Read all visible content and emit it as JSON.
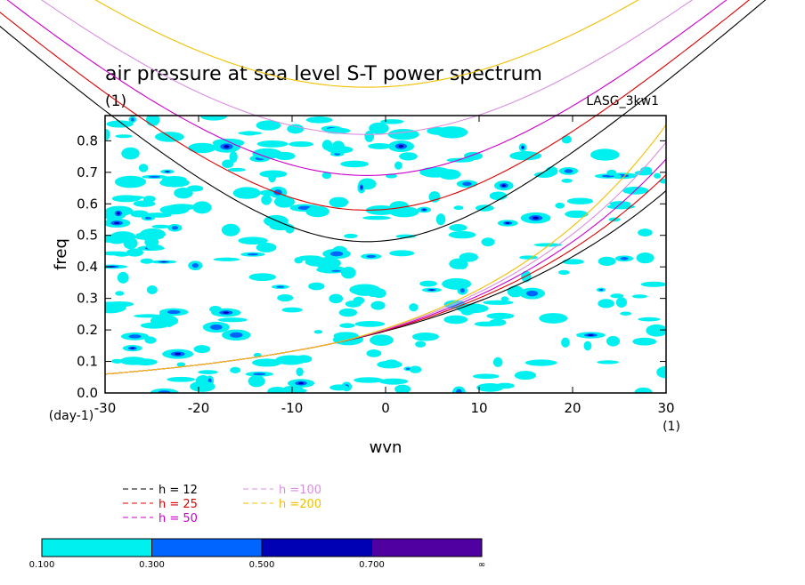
{
  "chart_data": {
    "type": "line",
    "title": "air pressure at sea level S-T power spectrum",
    "subtitle_left": "(1)",
    "subtitle_right": "LASG_3kw1",
    "xlabel": "wvn",
    "ylabel": "freq",
    "x_unit": "(1)",
    "y_unit": "(day-1)",
    "xlim": [
      -30,
      30
    ],
    "ylim": [
      0.0,
      0.88
    ],
    "xticks": [
      "-30",
      "-20",
      "-10",
      "0",
      "10",
      "20",
      "30"
    ],
    "yticks": [
      "0.0",
      "0.1",
      "0.2",
      "0.3",
      "0.4",
      "0.5",
      "0.6",
      "0.7",
      "0.8"
    ],
    "x_tick_values": [
      -30,
      -20,
      -10,
      0,
      10,
      20,
      30
    ],
    "y_tick_values": [
      0,
      0.1,
      0.2,
      0.3,
      0.4,
      0.5,
      0.6,
      0.7,
      0.8
    ],
    "series": [
      {
        "name": "h = 12",
        "color": "#000000",
        "min_freq": 0.48,
        "min_wvn": -2
      },
      {
        "name": "h = 25",
        "color": "#dd0000",
        "min_freq": 0.58,
        "min_wvn": -2
      },
      {
        "name": "h = 50",
        "color": "#cc00cc",
        "min_freq": 0.69,
        "min_wvn": -2
      },
      {
        "name": "h =100",
        "color": "#d98fe0",
        "min_freq": 0.82,
        "min_wvn": -2
      },
      {
        "name": "h =200",
        "color": "#f0c000",
        "min_freq": 0.97,
        "min_wvn": -2
      }
    ],
    "colorbar": {
      "labels": [
        "0.100",
        "0.300",
        "0.500",
        "0.700",
        "∞"
      ],
      "colors": [
        "#00f0f0",
        "#0064ff",
        "#0000b4",
        "#5000a0"
      ]
    }
  }
}
